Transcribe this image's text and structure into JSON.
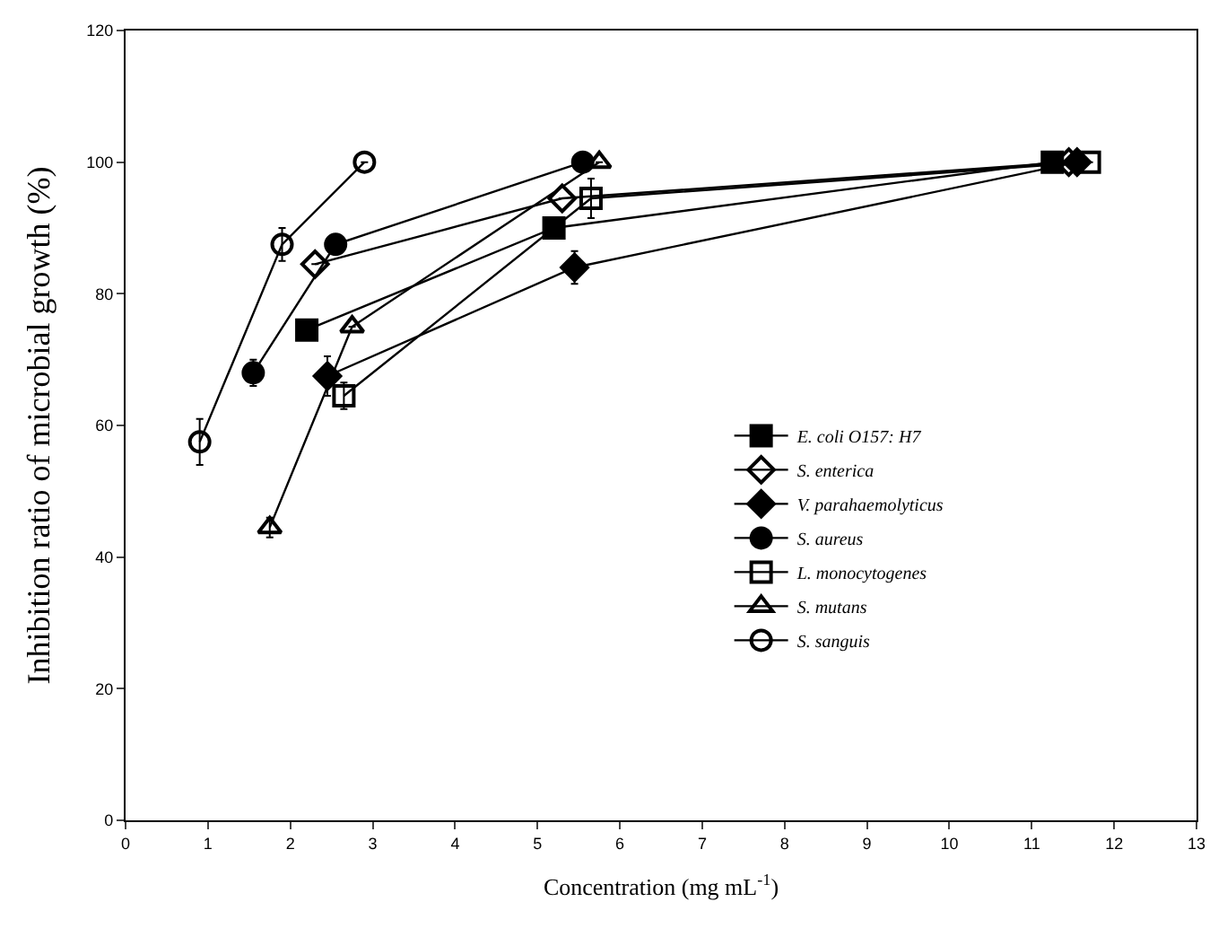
{
  "chart_data": {
    "type": "line",
    "xlabel": "Concentration (mg mL$^{-1}$)",
    "ylabel": "Inhibition ratio of microbial growth (%)",
    "xlim": [
      0,
      13
    ],
    "xticks": [
      0,
      1,
      2,
      3,
      4,
      5,
      6,
      7,
      8,
      9,
      10,
      11,
      12,
      13
    ],
    "ylim": [
      0,
      120
    ],
    "yticks": [
      0,
      20,
      40,
      60,
      80,
      100,
      120
    ],
    "legend": "right",
    "line_style": "solid",
    "series": [
      {
        "name": "E. coli O157: H7",
        "color": "#000000",
        "marker": "square",
        "x": [
          2.2,
          5.2,
          11.25
        ],
        "values": [
          74.5,
          90,
          100
        ],
        "errors": [
          null,
          null,
          null
        ]
      },
      {
        "name": "S. enterica",
        "color": "#000000",
        "marker": "diamond-open",
        "x": [
          2.3,
          5.3,
          11.45
        ],
        "values": [
          84.5,
          94.5,
          100
        ],
        "errors": [
          null,
          null,
          null
        ]
      },
      {
        "name": "V. parahaemolyticus",
        "color": "#000000",
        "marker": "diamond",
        "x": [
          2.45,
          5.45,
          11.55
        ],
        "values": [
          67.5,
          84,
          100
        ],
        "errors": [
          3,
          2.5,
          null
        ]
      },
      {
        "name": "S. aureus",
        "color": "#000000",
        "marker": "circle",
        "x": [
          1.55,
          2.55,
          5.55
        ],
        "values": [
          68,
          87.5,
          100
        ],
        "errors": [
          2,
          null,
          null
        ]
      },
      {
        "name": "L. monocytogenes",
        "color": "#000000",
        "marker": "square-open",
        "x": [
          2.65,
          5.65,
          11.7
        ],
        "values": [
          64.5,
          94.5,
          100
        ],
        "errors": [
          2,
          3,
          null
        ]
      },
      {
        "name": "S. mutans",
        "color": "#000000",
        "marker": "triangle-open",
        "x": [
          1.75,
          2.75,
          5.75
        ],
        "values": [
          44.5,
          75,
          100
        ],
        "errors": [
          1.5,
          null,
          null
        ]
      },
      {
        "name": "S. sanguis",
        "color": "#000000",
        "marker": "circle-open",
        "x": [
          0.9,
          1.9,
          2.9
        ],
        "values": [
          57.5,
          87.5,
          100
        ],
        "errors": [
          3.5,
          2.5,
          null
        ]
      }
    ]
  }
}
